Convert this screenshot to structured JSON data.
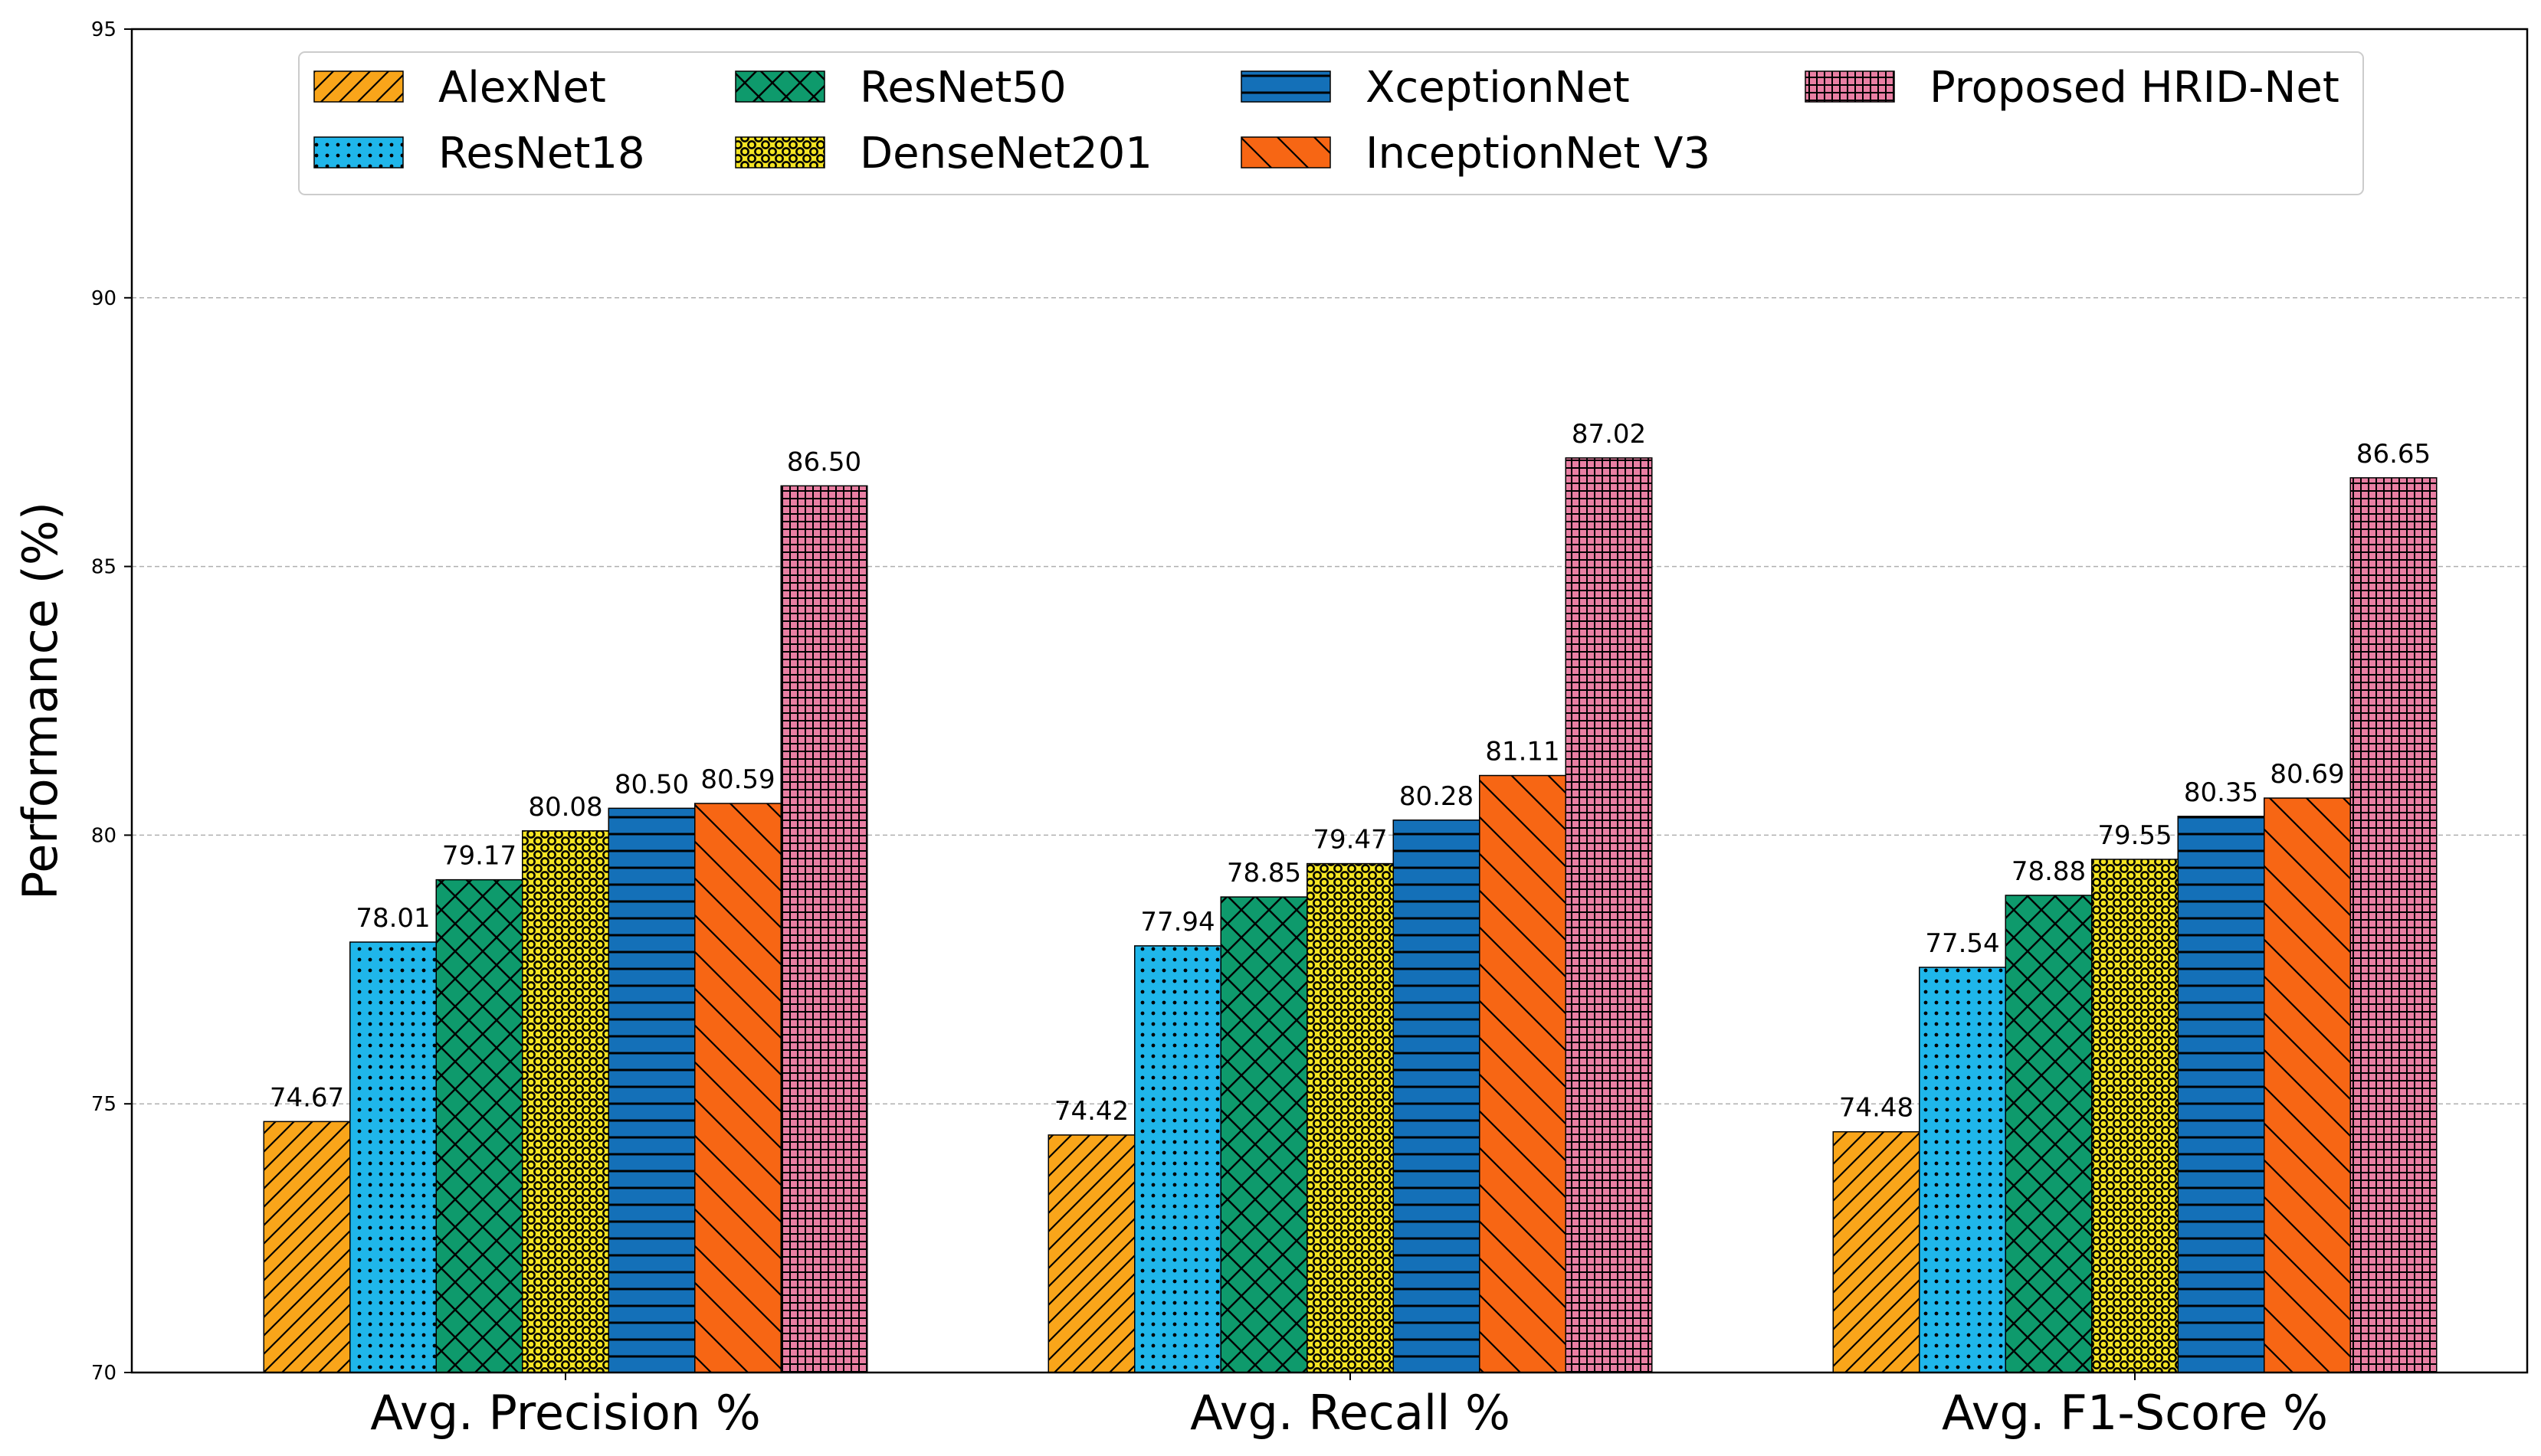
{
  "chart_data": {
    "type": "bar",
    "categories": [
      "Avg. Precision %",
      "Avg. Recall %",
      "Avg. F1-Score %"
    ],
    "series": [
      {
        "name": "AlexNet",
        "values": [
          74.67,
          74.42,
          74.48
        ],
        "color": "#F9A51A",
        "pattern": "diag-up"
      },
      {
        "name": "ResNet18",
        "values": [
          78.01,
          77.94,
          77.54
        ],
        "color": "#1FB6EA",
        "pattern": "dots"
      },
      {
        "name": "ResNet50",
        "values": [
          79.17,
          78.85,
          78.88
        ],
        "color": "#0E9A6C",
        "pattern": "crosshatch"
      },
      {
        "name": "DenseNet201",
        "values": [
          80.08,
          79.47,
          79.55
        ],
        "color": "#F5E524",
        "pattern": "circles"
      },
      {
        "name": "XceptionNet",
        "values": [
          80.5,
          80.28,
          80.35
        ],
        "color": "#1470B8",
        "pattern": "horizontal"
      },
      {
        "name": "InceptionNet V3",
        "values": [
          80.59,
          81.11,
          80.69
        ],
        "color": "#F76614",
        "pattern": "diag-down"
      },
      {
        "name": "Proposed HRID-Net",
        "values": [
          86.5,
          87.02,
          86.65
        ],
        "color": "#E97FA3",
        "pattern": "grid"
      }
    ],
    "data_labels": [
      [
        "74.67",
        "74.42",
        "74.48"
      ],
      [
        "78.01",
        "77.94",
        "77.54"
      ],
      [
        "79.17",
        "78.85",
        "78.88"
      ],
      [
        "80.08",
        "79.47",
        "79.55"
      ],
      [
        "80.50",
        "80.28",
        "80.35"
      ],
      [
        "80.59",
        "81.11",
        "80.69"
      ],
      [
        "86.50",
        "87.02",
        "86.65"
      ]
    ],
    "title": "",
    "xlabel": "",
    "ylabel": "Performance (%)",
    "ylim": [
      70,
      95
    ],
    "yticks": [
      70,
      75,
      80,
      85,
      90,
      95
    ],
    "ytick_labels": [
      "70",
      "75",
      "80",
      "85",
      "90",
      "95"
    ],
    "grid": true,
    "legend_position": "top-center",
    "legend_columns": 4
  }
}
